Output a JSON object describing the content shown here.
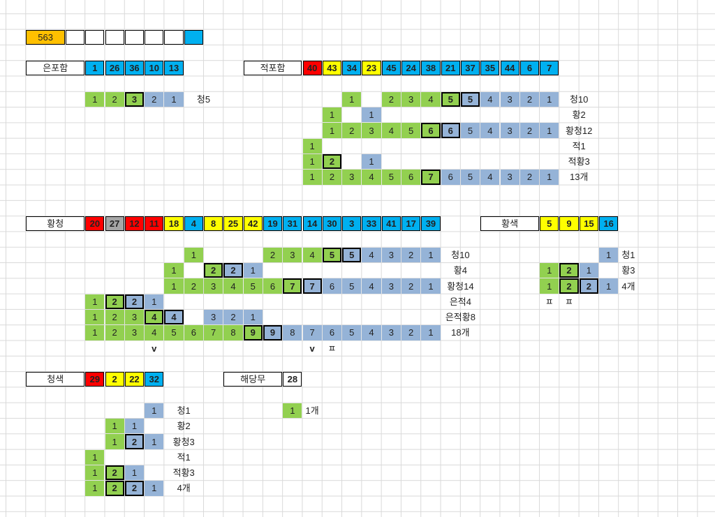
{
  "colors": {
    "green": "#92d050",
    "lightblue": "#95b3d7",
    "blue": "#00b0f0",
    "yellow": "#ffff00",
    "red": "#ff0000",
    "gray": "#a6a6a6",
    "orange": "#ffc000",
    "white": "#ffffff"
  },
  "top_row": {
    "value": "563"
  },
  "sections": {
    "eunpoham": {
      "title": "은포함",
      "numbers": [
        "1",
        "26",
        "36",
        "10",
        "13"
      ],
      "pattern": [
        "1",
        "2",
        "3",
        "2",
        "1"
      ],
      "result": "청5"
    },
    "jeokpoham": {
      "title": "적포함",
      "numbers": [
        "40",
        "43",
        "34",
        "23",
        "45",
        "24",
        "38",
        "21",
        "37",
        "35",
        "44",
        "6",
        "7"
      ],
      "rows": [
        {
          "cells": [
            "1",
            "2",
            "3",
            "4",
            "5",
            "5",
            "4",
            "3",
            "2",
            "1"
          ],
          "label": "청10"
        },
        {
          "cells": [
            "1",
            "1"
          ],
          "label": "황2"
        },
        {
          "cells": [
            "1",
            "2",
            "3",
            "4",
            "5",
            "6",
            "6",
            "5",
            "4",
            "3",
            "2",
            "1"
          ],
          "label": "황청12"
        },
        {
          "cells": [
            "1"
          ],
          "label": "적1"
        },
        {
          "cells": [
            "1",
            "2",
            "1"
          ],
          "label": "적황3"
        },
        {
          "cells": [
            "1",
            "2",
            "3",
            "4",
            "5",
            "6",
            "7",
            "6",
            "5",
            "4",
            "3",
            "2",
            "1"
          ],
          "label": "13개"
        }
      ]
    },
    "hwangcheong": {
      "title": "황청",
      "numbers": [
        "20",
        "27",
        "12",
        "11",
        "18",
        "4",
        "8",
        "25",
        "42",
        "19",
        "31",
        "14",
        "30",
        "3",
        "33",
        "41",
        "17",
        "39"
      ],
      "rows": [
        {
          "cells": [
            "1",
            "2",
            "3",
            "4",
            "5",
            "5",
            "4",
            "3",
            "2",
            "1"
          ],
          "label": "청10"
        },
        {
          "cells": [
            "1",
            "2",
            "2",
            "1"
          ],
          "label": "황4"
        },
        {
          "cells": [
            "1",
            "2",
            "3",
            "4",
            "5",
            "6",
            "7",
            "7",
            "6",
            "5",
            "4",
            "3",
            "2",
            "1"
          ],
          "label": "황청14"
        },
        {
          "cells": [
            "1",
            "2",
            "2",
            "1"
          ],
          "label": "은적4"
        },
        {
          "cells": [
            "1",
            "2",
            "3",
            "4",
            "4",
            "3",
            "2",
            "1"
          ],
          "label": "은적황8"
        },
        {
          "cells": [
            "1",
            "2",
            "3",
            "4",
            "5",
            "6",
            "7",
            "8",
            "9",
            "9",
            "8",
            "7",
            "6",
            "5",
            "4",
            "3",
            "2",
            "1"
          ],
          "label": "18개"
        }
      ],
      "marks": [
        "v",
        "v",
        "ㅍ"
      ]
    },
    "hwangsaek": {
      "title": "황색",
      "numbers": [
        "5",
        "9",
        "15",
        "16"
      ],
      "rows": [
        {
          "cells": [
            "1"
          ],
          "label": "청1"
        },
        {
          "cells": [
            "1",
            "2",
            "1"
          ],
          "label": "황3"
        },
        {
          "cells": [
            "1",
            "2",
            "2",
            "1"
          ],
          "label": "4개"
        }
      ],
      "marks": [
        "ㅍ",
        "ㅍ"
      ]
    },
    "cheongsaek": {
      "title": "청색",
      "numbers": [
        "29",
        "2",
        "22",
        "32"
      ],
      "rows": [
        {
          "cells": [
            "1"
          ],
          "label": "청1"
        },
        {
          "cells": [
            "1",
            "1"
          ],
          "label": "황2"
        },
        {
          "cells": [
            "1",
            "2",
            "1"
          ],
          "label": "황청3"
        },
        {
          "cells": [
            "1"
          ],
          "label": "적1"
        },
        {
          "cells": [
            "1",
            "2",
            "1"
          ],
          "label": "적황3"
        },
        {
          "cells": [
            "1",
            "2",
            "2",
            "1"
          ],
          "label": "4개"
        }
      ]
    },
    "haedangmu": {
      "title": "해당무",
      "numbers": [
        "28"
      ],
      "pattern": [
        "1"
      ],
      "result": "1개"
    }
  }
}
